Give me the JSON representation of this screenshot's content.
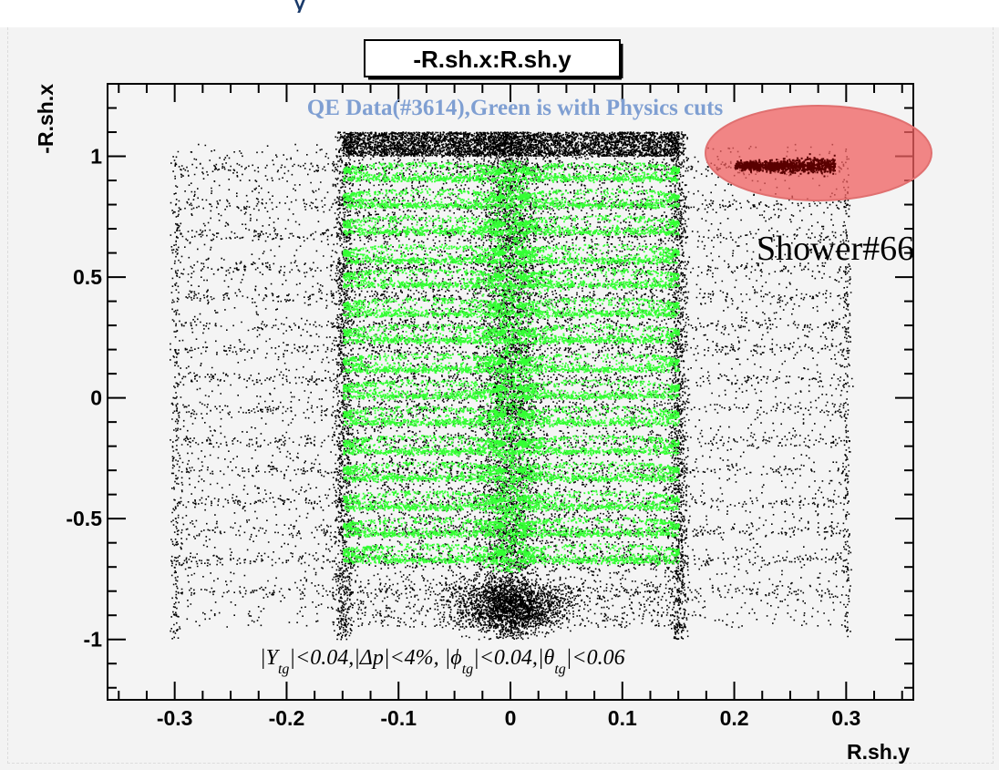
{
  "slide": {
    "background_color": "#f3f3f3",
    "heading_fragment": "y"
  },
  "chart_data": {
    "type": "scatter",
    "title": "-R.sh.x:R.sh.y",
    "xlabel": "R.sh.y",
    "ylabel": "-R.sh.x",
    "xlim": [
      -0.36,
      0.36
    ],
    "ylim": [
      -1.25,
      1.3
    ],
    "x_ticks": [
      -0.3,
      -0.2,
      -0.1,
      0,
      0.1,
      0.2,
      0.3
    ],
    "x_tick_labels": [
      "-0.3",
      "-0.2",
      "-0.1",
      "0",
      "0.1",
      "0.2",
      "0.3"
    ],
    "y_ticks": [
      1,
      0.5,
      0,
      -0.5,
      -1
    ],
    "y_tick_labels": [
      "1",
      "0.5",
      "0",
      "-0.5",
      "-1"
    ],
    "grid": false,
    "legend_text": "QE Data(#3614),Green is with Physics cuts",
    "series": [
      {
        "color": "#000000",
        "x_range": [
          -0.3,
          0.3
        ],
        "y_range": [
          -1.0,
          1.1
        ]
      },
      {
        "color": "#33ff33",
        "x_range": [
          -0.15,
          0.15
        ],
        "y_range": [
          -0.72,
          0.98
        ],
        "row_centers": [
          0.94,
          0.83,
          0.72,
          0.6,
          0.5,
          0.38,
          0.27,
          0.15,
          0.04,
          -0.07,
          -0.19,
          -0.3,
          -0.42,
          -0.53,
          -0.64
        ]
      }
    ],
    "annotations": {
      "cuts": {
        "y_pipe": "|Y",
        "y_sub": "tg",
        "mid": "|<0.04,|Δp|<4%, |ϕ",
        "phi_sub": "tg",
        "phi_tail": "|<0.04,|θ",
        "theta_sub": "tg",
        "theta_tail": "|<0.06"
      },
      "highlight": {
        "label": "Shower#66",
        "center_x": 0.265,
        "center_y": 0.98,
        "fill_color": "#f06060"
      },
      "hot_cluster": {
        "color": "#5a0000",
        "x_range": [
          0.2,
          0.29
        ],
        "y_center": 0.96
      }
    }
  }
}
